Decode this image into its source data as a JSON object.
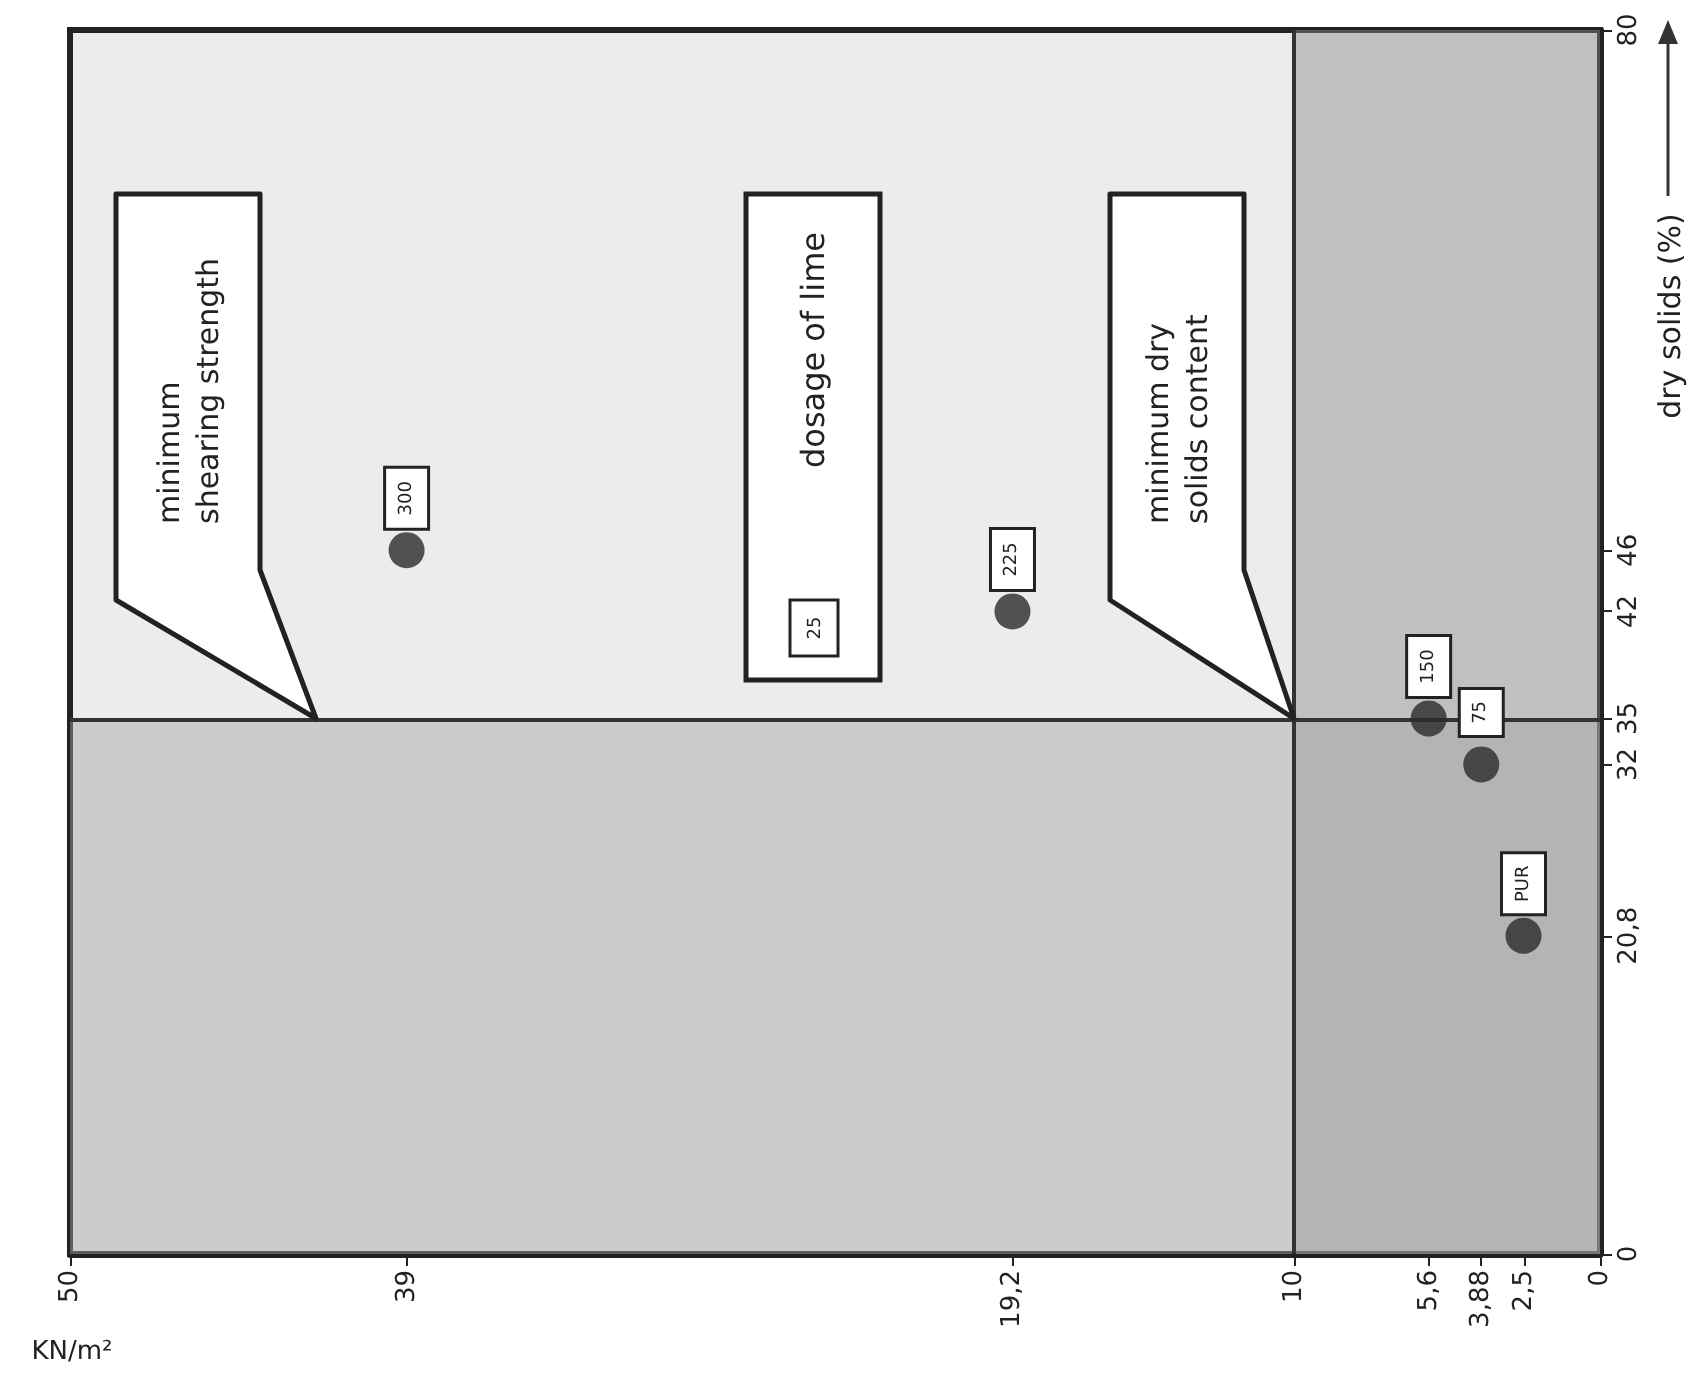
{
  "chart_data": {
    "type": "scatter",
    "xlabel": "KN/m²",
    "ylabel": "dry solids (%)",
    "x": [
      2.5,
      3.88,
      5.6,
      19.2,
      39
    ],
    "values": [
      20.8,
      32,
      35,
      42,
      46
    ],
    "color": "#2b2b2b",
    "marker": "circle",
    "grid": false,
    "xlim": [
      50,
      0
    ],
    "xticks": [
      50,
      39,
      {
        "value": 19.2,
        "label": "19,2"
      },
      10,
      {
        "value": 5.6,
        "label": "5,6"
      },
      {
        "value": 3.88,
        "label": "3,88"
      },
      {
        "value": 2.5,
        "label": "2,5"
      },
      0
    ],
    "ylim": [
      0,
      80
    ],
    "yticks": [
      0,
      {
        "value": 20.8,
        "label": "20,8"
      },
      32,
      35,
      42,
      46,
      80
    ],
    "bands": [
      {
        "axis": "x",
        "from": 0,
        "to": 10,
        "color": "#8c8c8c"
      },
      {
        "axis": "y",
        "from": 0,
        "to": 35,
        "color": "#a6a6a6"
      }
    ],
    "ref_lines": [
      {
        "axis": "x",
        "value": 10,
        "color": "#333333"
      },
      {
        "axis": "y",
        "value": 35,
        "color": "#333333"
      }
    ],
    "annotations": [
      {
        "text": "PUR",
        "x": 2.5,
        "y": 20.8
      },
      {
        "text": "75",
        "x": 3.88,
        "y": 32
      },
      {
        "text": "150",
        "x": 5.6,
        "y": 35
      },
      {
        "text": "225",
        "x": 19.2,
        "y": 42
      },
      {
        "text": "300",
        "x": 39,
        "y": 46
      },
      "minimum shearing strength",
      "dosage of lime",
      "25",
      "minimum dry solids content"
    ]
  }
}
